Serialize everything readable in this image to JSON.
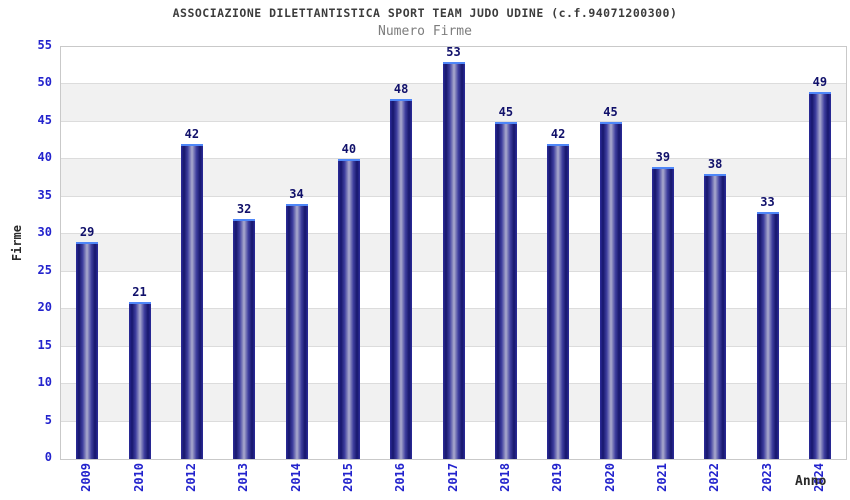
{
  "header": {
    "title": "ASSOCIAZIONE DILETTANTISTICA SPORT TEAM JUDO UDINE (c.f.94071200300)",
    "subtitle": "Numero Firme"
  },
  "chart_data": {
    "type": "bar",
    "title": "ASSOCIAZIONE DILETTANTISTICA SPORT TEAM JUDO UDINE (c.f.94071200300)",
    "subtitle": "Numero Firme",
    "categories": [
      "2009",
      "2010",
      "2012",
      "2013",
      "2014",
      "2015",
      "2016",
      "2017",
      "2018",
      "2019",
      "2020",
      "2021",
      "2022",
      "2023",
      "2024"
    ],
    "values": [
      29,
      21,
      42,
      32,
      34,
      40,
      48,
      53,
      45,
      42,
      45,
      39,
      38,
      33,
      49
    ],
    "xlabel": "Anno",
    "ylabel": "Firme",
    "ylim": [
      0,
      55
    ],
    "ytick_step": 5,
    "yticks": [
      0,
      5,
      10,
      15,
      20,
      25,
      30,
      35,
      40,
      45,
      50,
      55
    ],
    "grid": true,
    "legend_position": "none",
    "colors": {
      "tick_label": "#2323cd",
      "value_label": "#10106a",
      "bar_edge": "#17176c",
      "bar_center": "#aaaacd",
      "bar_top_outline": "#4e86f8",
      "band_gray": "#f1f1f1",
      "band_white": "#ffffff",
      "gridline": "#dcdcdc",
      "plot_border": "#c9c9c9",
      "title": "#3c3c3c",
      "subtitle": "#7d7d7d"
    }
  }
}
